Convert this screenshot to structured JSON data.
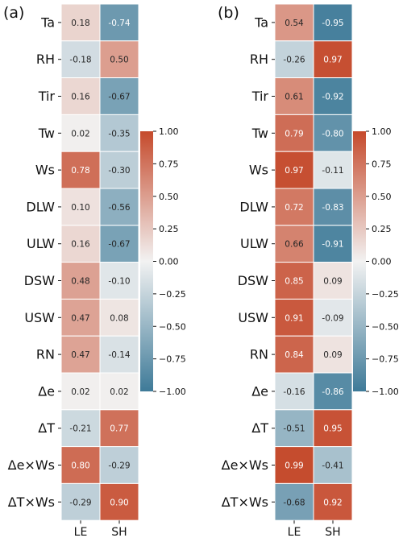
{
  "chart_data": [
    {
      "type": "heatmap",
      "panel_label": "(a)",
      "rows": [
        "Ta",
        "RH",
        "Tir",
        "Tw",
        "Ws",
        "DLW",
        "ULW",
        "DSW",
        "USW",
        "RN",
        "Δe",
        "ΔT",
        "Δe×Ws",
        "ΔT×Ws"
      ],
      "columns": [
        "LE",
        "SH"
      ],
      "values": [
        [
          0.18,
          -0.74
        ],
        [
          -0.18,
          0.5
        ],
        [
          0.16,
          -0.67
        ],
        [
          0.02,
          -0.35
        ],
        [
          0.78,
          -0.3
        ],
        [
          0.1,
          -0.56
        ],
        [
          0.16,
          -0.67
        ],
        [
          0.48,
          -0.1
        ],
        [
          0.47,
          0.08
        ],
        [
          0.47,
          -0.14
        ],
        [
          0.02,
          0.02
        ],
        [
          -0.21,
          0.77
        ],
        [
          0.8,
          -0.29
        ],
        [
          -0.29,
          0.9
        ]
      ],
      "value_labels": [
        [
          "0.18",
          "-0.74"
        ],
        [
          "-0.18",
          "0.50"
        ],
        [
          "0.16",
          "-0.67"
        ],
        [
          "0.02",
          "-0.35"
        ],
        [
          "0.78",
          "-0.30"
        ],
        [
          "0.10",
          "-0.56"
        ],
        [
          "0.16",
          "-0.67"
        ],
        [
          "0.48",
          "-0.10"
        ],
        [
          "0.47",
          "0.08"
        ],
        [
          "0.47",
          "-0.14"
        ],
        [
          "0.02",
          "0.02"
        ],
        [
          "-0.21",
          "0.77"
        ],
        [
          "0.80",
          "-0.29"
        ],
        [
          "-0.29",
          "0.90"
        ]
      ],
      "colorbar": {
        "range": [
          -1.0,
          1.0
        ],
        "ticks": [
          "1.00",
          "0.75",
          "0.50",
          "0.25",
          "0.00",
          "−0.25",
          "−0.50",
          "−0.75",
          "−1.00"
        ],
        "low_color": "#3e7a98",
        "mid_color": "#f2f2f2",
        "high_color": "#c54a2c"
      }
    },
    {
      "type": "heatmap",
      "panel_label": "(b)",
      "rows": [
        "Ta",
        "RH",
        "Tir",
        "Tw",
        "Ws",
        "DLW",
        "ULW",
        "DSW",
        "USW",
        "RN",
        "Δe",
        "ΔT",
        "Δe×Ws",
        "ΔT×Ws"
      ],
      "columns": [
        "LE",
        "SH"
      ],
      "values": [
        [
          0.54,
          -0.95
        ],
        [
          -0.26,
          0.97
        ],
        [
          0.61,
          -0.92
        ],
        [
          0.79,
          -0.8
        ],
        [
          0.97,
          -0.11
        ],
        [
          0.72,
          -0.83
        ],
        [
          0.66,
          -0.91
        ],
        [
          0.85,
          0.09
        ],
        [
          0.91,
          -0.09
        ],
        [
          0.84,
          0.09
        ],
        [
          -0.16,
          -0.86
        ],
        [
          -0.51,
          0.95
        ],
        [
          0.99,
          -0.41
        ],
        [
          -0.68,
          0.92
        ]
      ],
      "value_labels": [
        [
          "0.54",
          "-0.95"
        ],
        [
          "-0.26",
          "0.97"
        ],
        [
          "0.61",
          "-0.92"
        ],
        [
          "0.79",
          "-0.80"
        ],
        [
          "0.97",
          "-0.11"
        ],
        [
          "0.72",
          "-0.83"
        ],
        [
          "0.66",
          "-0.91"
        ],
        [
          "0.85",
          "0.09"
        ],
        [
          "0.91",
          "-0.09"
        ],
        [
          "0.84",
          "0.09"
        ],
        [
          "-0.16",
          "-0.86"
        ],
        [
          "-0.51",
          "0.95"
        ],
        [
          "0.99",
          "-0.41"
        ],
        [
          "-0.68",
          "0.92"
        ]
      ],
      "colorbar": {
        "range": [
          -1.0,
          1.0
        ],
        "ticks": [
          "1.00",
          "0.75",
          "0.50",
          "0.25",
          "0.00",
          "−0.25",
          "−0.50",
          "−0.75",
          "−1.00"
        ],
        "low_color": "#3e7a98",
        "mid_color": "#f2f2f2",
        "high_color": "#c54a2c"
      }
    }
  ]
}
